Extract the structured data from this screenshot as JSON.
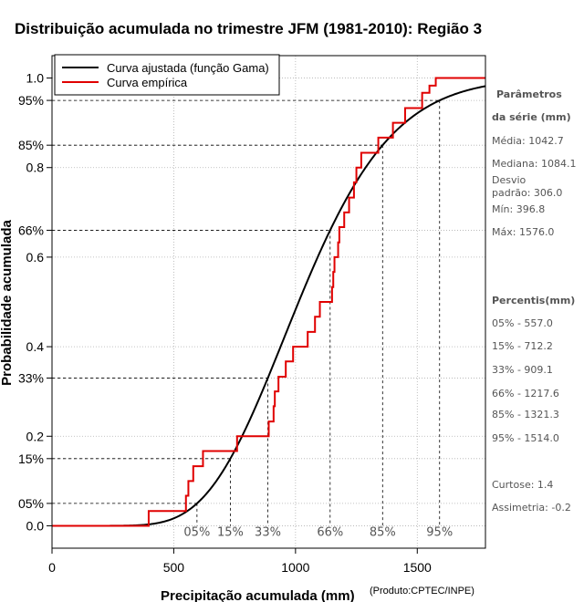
{
  "chart_data": {
    "type": "line",
    "title": "Distribuição acumulada no trimestre JFM (1981-2010): Região 3",
    "xlabel": "Precipitação acumulada (mm)",
    "ylabel": "Probabilidade acumulada",
    "credit": "(Produto:CPTEC/INPE)",
    "xlim": [
      0,
      1780
    ],
    "ylim": [
      -0.05,
      1.05
    ],
    "x_ticks": [
      0,
      500,
      1000,
      1500
    ],
    "x_tick_labels": [
      "0",
      "500",
      "1000",
      "1500"
    ],
    "y_ticks": [
      0.0,
      0.2,
      0.4,
      0.6,
      0.8,
      1.0
    ],
    "y_tick_labels": [
      "0.0",
      "0.2",
      "0.4",
      "0.6",
      "0.8",
      "1.0"
    ],
    "percentile_levels": [
      0.05,
      0.15,
      0.33,
      0.66,
      0.85,
      0.95
    ],
    "percentile_y_labels": [
      "05%",
      "15%",
      "33%",
      "66%",
      "85%",
      "95%"
    ],
    "percentile_x_values": [
      557.0,
      712.2,
      909.1,
      1217.6,
      1321.3,
      1514.0
    ],
    "percentile_x_labels": [
      "05%",
      "15%",
      "33%",
      "66%",
      "85%",
      "95%"
    ],
    "gamma_params": {
      "mean": 1042.7,
      "sd": 306.0
    },
    "legend": [
      {
        "label": "Curva ajustada (função Gama)",
        "color": "#000000"
      },
      {
        "label": "Curva empírica",
        "color": "#e00000"
      }
    ],
    "empirical": {
      "x": [
        397,
        550,
        560,
        580,
        620,
        760,
        890,
        910,
        915,
        930,
        960,
        990,
        1050,
        1080,
        1100,
        1150,
        1155,
        1160,
        1175,
        1180,
        1200,
        1220,
        1240,
        1250,
        1270,
        1340,
        1400,
        1450,
        1520,
        1550,
        1576
      ],
      "y": [
        0.033,
        0.067,
        0.1,
        0.133,
        0.167,
        0.2,
        0.233,
        0.267,
        0.3,
        0.333,
        0.367,
        0.4,
        0.433,
        0.467,
        0.5,
        0.533,
        0.567,
        0.6,
        0.633,
        0.667,
        0.7,
        0.733,
        0.767,
        0.8,
        0.833,
        0.867,
        0.9,
        0.933,
        0.967,
        0.983,
        1.0
      ]
    },
    "side_panel": {
      "params_title_1": "Parâmetros",
      "params_title_2": "da série (mm)",
      "media": "Média: 1042.7",
      "mediana": "Mediana: 1084.1",
      "desvio_1": "Desvio",
      "desvio_2": "padrão: 306.0",
      "min": "Mín: 396.8",
      "max": "Máx: 1576.0",
      "percentis_title": "Percentis(mm)",
      "p05": "05% - 557.0",
      "p15": "15% - 712.2",
      "p33": "33% - 909.1",
      "p66": "66% - 1217.6",
      "p85": "85% - 1321.3",
      "p95": "95% - 1514.0",
      "curtose": "Curtose: 1.4",
      "assimetria": "Assimetria: -0.2"
    },
    "colors": {
      "empirical": "#e00000",
      "fitted": "#000000",
      "grid": "#b0b0b0"
    }
  }
}
